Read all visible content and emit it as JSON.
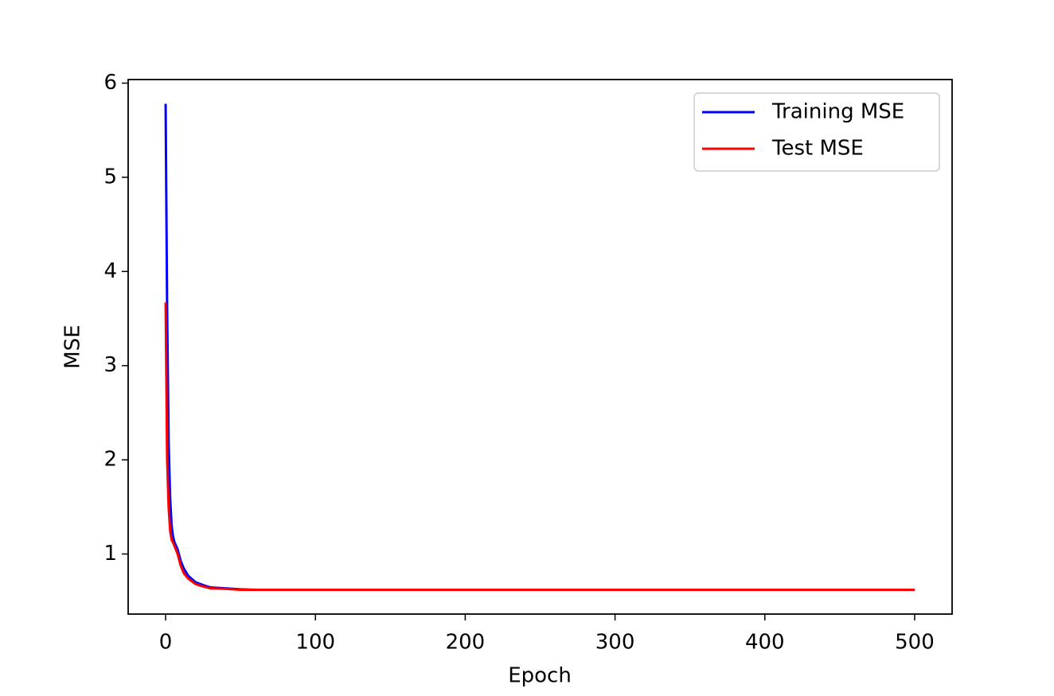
{
  "chart_data": {
    "type": "line",
    "xlabel": "Epoch",
    "ylabel": "MSE",
    "x": [
      0,
      1,
      2,
      3,
      4,
      5,
      6,
      8,
      10,
      12,
      15,
      20,
      25,
      30,
      40,
      50,
      60,
      80,
      100,
      150,
      200,
      250,
      300,
      350,
      400,
      450,
      500
    ],
    "series": [
      {
        "name": "Training MSE",
        "color": "#0000ff",
        "values": [
          5.78,
          3.6,
          2.2,
          1.6,
          1.3,
          1.18,
          1.12,
          1.05,
          0.93,
          0.85,
          0.77,
          0.7,
          0.67,
          0.645,
          0.635,
          0.625,
          0.62,
          0.62,
          0.62,
          0.62,
          0.62,
          0.62,
          0.62,
          0.62,
          0.62,
          0.62,
          0.62
        ]
      },
      {
        "name": "Test MSE",
        "color": "#ff0000",
        "values": [
          3.67,
          2.0,
          1.5,
          1.25,
          1.15,
          1.12,
          1.08,
          1.0,
          0.88,
          0.8,
          0.74,
          0.68,
          0.655,
          0.635,
          0.63,
          0.62,
          0.62,
          0.62,
          0.62,
          0.62,
          0.62,
          0.62,
          0.62,
          0.62,
          0.62,
          0.62,
          0.62
        ]
      }
    ],
    "xlim": [
      -25,
      525
    ],
    "xticks": [
      0,
      100,
      200,
      300,
      400,
      500
    ],
    "ylim": [
      0.362,
      6.038
    ],
    "yticks": [
      1,
      2,
      3,
      4,
      5,
      6
    ],
    "grid": false,
    "legend": "upper right"
  }
}
